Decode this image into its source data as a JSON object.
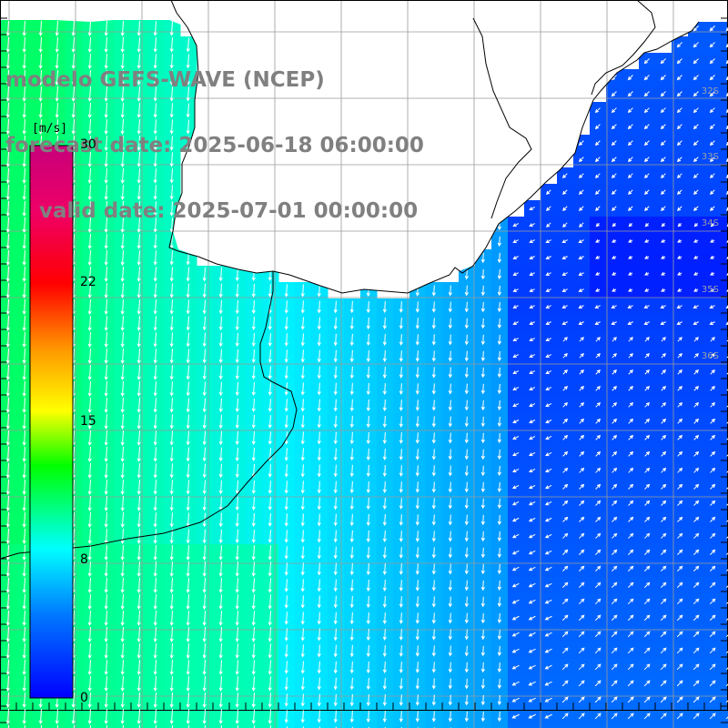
{
  "title": {
    "model": "modelo GEFS-WAVE (NCEP)",
    "forecast_date": "forecast date: 2025-06-18 06:00:00",
    "valid_date": "valid date: 2025-07-01 00:00:00"
  },
  "colorbar": {
    "unit": "[m/s]",
    "ticks": [
      {
        "label": "30",
        "value": 30
      },
      {
        "label": "22",
        "value": 22
      },
      {
        "label": "15",
        "value": 15
      },
      {
        "label": "8",
        "value": 8
      },
      {
        "label": "0",
        "value": 0
      }
    ],
    "min": 0,
    "max": 30
  },
  "lat_labels": [
    "32S",
    "33S",
    "34S",
    "35S",
    "36S"
  ],
  "colors": {
    "land": "#ffffff",
    "coastline": "#000000",
    "grid": "#9a9a9a",
    "arrows": "#ffffff",
    "title": "#808080"
  },
  "wind_field": {
    "description_units": "m/s",
    "regions": [
      {
        "area": "southwest",
        "speed_range": [
          9,
          11
        ],
        "direction": "from north"
      },
      {
        "area": "estuary",
        "speed_range": [
          6,
          8
        ],
        "direction": "from north"
      },
      {
        "area": "northeast offshore",
        "speed_range": [
          1,
          3
        ],
        "direction": "from northeast"
      },
      {
        "area": "east central offshore",
        "speed_range": [
          0,
          2
        ],
        "direction": "variable"
      },
      {
        "area": "southeast offshore",
        "speed_range": [
          2,
          4
        ],
        "direction": "from southwest"
      }
    ]
  }
}
